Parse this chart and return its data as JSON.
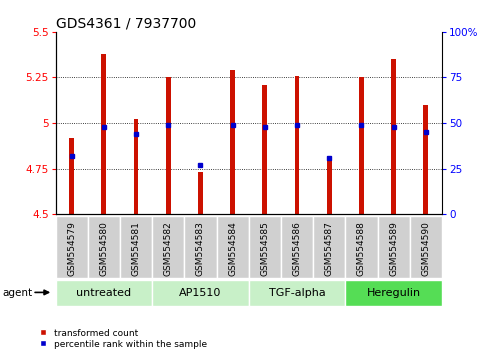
{
  "title": "GDS4361 / 7937700",
  "samples": [
    "GSM554579",
    "GSM554580",
    "GSM554581",
    "GSM554582",
    "GSM554583",
    "GSM554584",
    "GSM554585",
    "GSM554586",
    "GSM554587",
    "GSM554588",
    "GSM554589",
    "GSM554590"
  ],
  "transformed_count": [
    4.92,
    5.38,
    5.02,
    5.25,
    4.73,
    5.29,
    5.21,
    5.26,
    4.82,
    5.25,
    5.35,
    5.1
  ],
  "percentile_rank": [
    32,
    48,
    44,
    49,
    27,
    49,
    48,
    49,
    31,
    49,
    48,
    45
  ],
  "ylim_left": [
    4.5,
    5.5
  ],
  "ylim_right": [
    0,
    100
  ],
  "yticks_left": [
    4.5,
    4.75,
    5.0,
    5.25,
    5.5
  ],
  "yticks_right": [
    0,
    25,
    50,
    75,
    100
  ],
  "ytick_labels_left": [
    "4.5",
    "4.75",
    "5",
    "5.25",
    "5.5"
  ],
  "ytick_labels_right": [
    "0",
    "25",
    "50",
    "75",
    "100%"
  ],
  "gridlines": [
    4.75,
    5.0,
    5.25
  ],
  "agent_groups": [
    {
      "label": "untreated",
      "start": 0,
      "end": 2,
      "color": "#C8F0C8"
    },
    {
      "label": "AP1510",
      "start": 3,
      "end": 5,
      "color": "#C8F0C8"
    },
    {
      "label": "TGF-alpha",
      "start": 6,
      "end": 8,
      "color": "#C8F0C8"
    },
    {
      "label": "Heregulin",
      "start": 9,
      "end": 11,
      "color": "#55DD55"
    }
  ],
  "bar_color": "#CC1100",
  "dot_color": "#0000CC",
  "bar_width": 0.15,
  "dot_size": 18,
  "title_fontsize": 10,
  "tick_fontsize": 7.5,
  "label_fontsize": 6.5,
  "agent_fontsize": 8,
  "legend_label_red": "transformed count",
  "legend_label_blue": "percentile rank within the sample",
  "agent_label": "agent",
  "sample_bg": "#D0D0D0",
  "sample_border": "#FFFFFF"
}
